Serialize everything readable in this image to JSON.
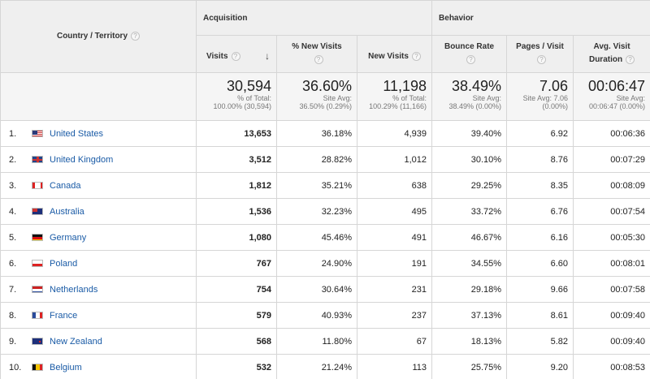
{
  "header": {
    "country": "Country / Territory",
    "acquisition": "Acquisition",
    "behavior": "Behavior",
    "help_glyph": "?",
    "sort_glyph": "↓",
    "columns": {
      "visits": "Visits",
      "new_visits_pct": "% New Visits",
      "new_visits": "New Visits",
      "bounce_rate": "Bounce Rate",
      "pages_visit": "Pages / Visit",
      "avg_duration_1": "Avg. Visit",
      "avg_duration_2": "Duration"
    }
  },
  "totals": {
    "visits": {
      "big": "30,594",
      "l1": "% of Total:",
      "l2": "100.00% (30,594)"
    },
    "new_visits_pct": {
      "big": "36.60%",
      "l1": "Site Avg:",
      "l2": "36.50% (0.29%)"
    },
    "new_visits": {
      "big": "11,198",
      "l1": "% of Total:",
      "l2": "100.29% (11,166)"
    },
    "bounce_rate": {
      "big": "38.49%",
      "l1": "Site Avg:",
      "l2": "38.49% (0.00%)"
    },
    "pages_visit": {
      "big": "7.06",
      "l1": "Site Avg: 7.06",
      "l2": "(0.00%)"
    },
    "avg_duration": {
      "big": "00:06:47",
      "l1": "Site Avg:",
      "l2": "00:06:47 (0.00%)"
    }
  },
  "rows": [
    {
      "idx": "1.",
      "country": "United States",
      "visits": "13,653",
      "new_pct": "36.18%",
      "new": "4,939",
      "bounce": "39.40%",
      "pages": "6.92",
      "dur": "00:06:36",
      "flag": "us"
    },
    {
      "idx": "2.",
      "country": "United Kingdom",
      "visits": "3,512",
      "new_pct": "28.82%",
      "new": "1,012",
      "bounce": "30.10%",
      "pages": "8.76",
      "dur": "00:07:29",
      "flag": "uk"
    },
    {
      "idx": "3.",
      "country": "Canada",
      "visits": "1,812",
      "new_pct": "35.21%",
      "new": "638",
      "bounce": "29.25%",
      "pages": "8.35",
      "dur": "00:08:09",
      "flag": "ca"
    },
    {
      "idx": "4.",
      "country": "Australia",
      "visits": "1,536",
      "new_pct": "32.23%",
      "new": "495",
      "bounce": "33.72%",
      "pages": "6.76",
      "dur": "00:07:54",
      "flag": "au"
    },
    {
      "idx": "5.",
      "country": "Germany",
      "visits": "1,080",
      "new_pct": "45.46%",
      "new": "491",
      "bounce": "46.67%",
      "pages": "6.16",
      "dur": "00:05:30",
      "flag": "de"
    },
    {
      "idx": "6.",
      "country": "Poland",
      "visits": "767",
      "new_pct": "24.90%",
      "new": "191",
      "bounce": "34.55%",
      "pages": "6.60",
      "dur": "00:08:01",
      "flag": "pl"
    },
    {
      "idx": "7.",
      "country": "Netherlands",
      "visits": "754",
      "new_pct": "30.64%",
      "new": "231",
      "bounce": "29.18%",
      "pages": "9.66",
      "dur": "00:07:58",
      "flag": "nl"
    },
    {
      "idx": "8.",
      "country": "France",
      "visits": "579",
      "new_pct": "40.93%",
      "new": "237",
      "bounce": "37.13%",
      "pages": "8.61",
      "dur": "00:09:40",
      "flag": "fr"
    },
    {
      "idx": "9.",
      "country": "New Zealand",
      "visits": "568",
      "new_pct": "11.80%",
      "new": "67",
      "bounce": "18.13%",
      "pages": "5.82",
      "dur": "00:09:40",
      "flag": "nz"
    },
    {
      "idx": "10.",
      "country": "Belgium",
      "visits": "532",
      "new_pct": "21.24%",
      "new": "113",
      "bounce": "25.75%",
      "pages": "9.20",
      "dur": "00:08:53",
      "flag": "be"
    }
  ]
}
